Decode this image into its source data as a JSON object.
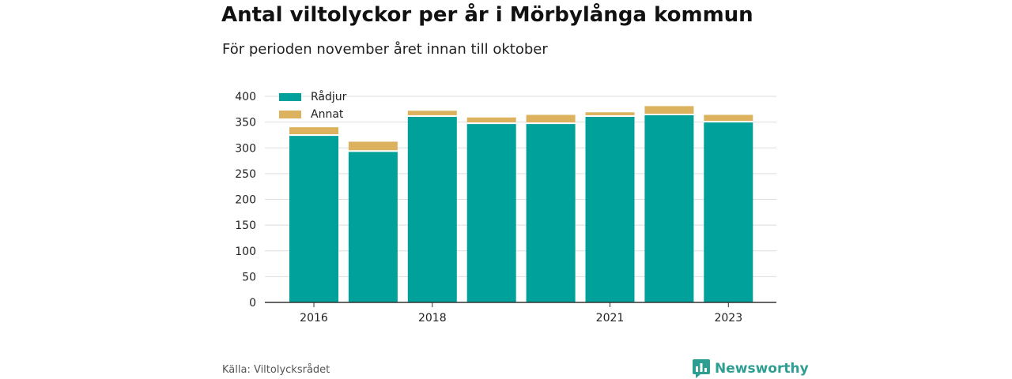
{
  "header": {
    "title": "Antal viltolyckor per år i Mörbylånga kommun",
    "subtitle": "För perioden november året innan till oktober"
  },
  "footer": {
    "source": "Källa: Viltolycksrådet",
    "brand": "Newsworthy"
  },
  "colors": {
    "radjur": "#00a19a",
    "annat": "#ddb25f",
    "grid": "#dddddd",
    "axis": "#333333",
    "brand": "#2e9e92"
  },
  "chart_data": {
    "type": "bar",
    "stacked": true,
    "categories": [
      "2016",
      "2017",
      "2018",
      "2019",
      "2020",
      "2021",
      "2022",
      "2023"
    ],
    "tick_labels": [
      "2016",
      "",
      "2018",
      "",
      "",
      "2021",
      "",
      "2023"
    ],
    "series": [
      {
        "name": "Rådjur",
        "values": [
          324,
          293,
          361,
          347,
          347,
          361,
          364,
          350
        ]
      },
      {
        "name": "Annat",
        "values": [
          16,
          19,
          11,
          12,
          17,
          8,
          17,
          14
        ]
      }
    ],
    "yticks": [
      0,
      50,
      100,
      150,
      200,
      250,
      300,
      350,
      400
    ],
    "ylim": [
      0,
      400
    ],
    "grid": true,
    "legend": "top-left"
  }
}
